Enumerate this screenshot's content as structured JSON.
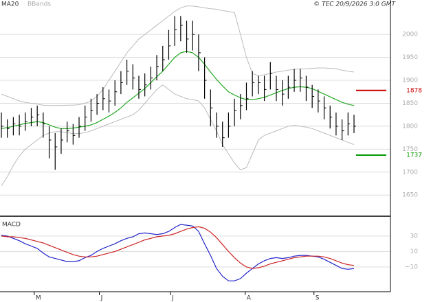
{
  "source": "© TEC 20/9/2026 3:0 GMT",
  "chart_data": [
    {
      "type": "ohlc",
      "xlim": [
        0,
        59
      ],
      "ylim": [
        1604,
        2075
      ],
      "yticks": [
        1650,
        1700,
        1750,
        1800,
        1850,
        1900,
        1950,
        2000
      ],
      "grid": true,
      "color": "#000000",
      "high": [
        1830,
        1815,
        1820,
        1825,
        1830,
        1840,
        1845,
        1830,
        1800,
        1785,
        1795,
        1810,
        1805,
        1820,
        1845,
        1860,
        1870,
        1885,
        1880,
        1900,
        1920,
        1945,
        1935,
        1910,
        1915,
        1930,
        1955,
        1975,
        2010,
        2040,
        2040,
        2030,
        2030,
        2000,
        1950,
        1880,
        1830,
        1810,
        1830,
        1860,
        1870,
        1895,
        1920,
        1910,
        1910,
        1940,
        1910,
        1900,
        1910,
        1925,
        1925,
        1910,
        1890,
        1880,
        1865,
        1845,
        1830,
        1815,
        1830,
        1825
      ],
      "low": [
        1775,
        1775,
        1780,
        1780,
        1790,
        1800,
        1800,
        1775,
        1730,
        1705,
        1740,
        1765,
        1760,
        1775,
        1790,
        1810,
        1825,
        1835,
        1830,
        1845,
        1870,
        1890,
        1880,
        1860,
        1865,
        1880,
        1900,
        1920,
        1945,
        1975,
        1985,
        1960,
        1965,
        1920,
        1860,
        1800,
        1775,
        1755,
        1775,
        1800,
        1815,
        1835,
        1865,
        1870,
        1855,
        1880,
        1855,
        1845,
        1860,
        1875,
        1875,
        1855,
        1840,
        1830,
        1815,
        1795,
        1780,
        1770,
        1780,
        1785
      ],
      "close": [
        1800,
        1795,
        1805,
        1800,
        1810,
        1820,
        1825,
        1805,
        1770,
        1755,
        1770,
        1790,
        1780,
        1800,
        1820,
        1835,
        1850,
        1860,
        1855,
        1875,
        1895,
        1920,
        1905,
        1880,
        1890,
        1905,
        1930,
        1945,
        1975,
        2010,
        2020,
        1990,
        2000,
        1960,
        1900,
        1840,
        1800,
        1775,
        1800,
        1835,
        1845,
        1860,
        1895,
        1895,
        1880,
        1915,
        1880,
        1870,
        1885,
        1900,
        1905,
        1885,
        1865,
        1855,
        1840,
        1820,
        1800,
        1790,
        1805,
        1800
      ],
      "series": [
        {
          "name": "MA20",
          "color": "#22a822",
          "values": [
            1795,
            1797,
            1800,
            1803,
            1806,
            1808,
            1810,
            1808,
            1803,
            1798,
            1795,
            1795,
            1796,
            1798,
            1800,
            1803,
            1808,
            1815,
            1822,
            1830,
            1840,
            1852,
            1862,
            1872,
            1882,
            1895,
            1908,
            1920,
            1935,
            1950,
            1960,
            1963,
            1960,
            1950,
            1935,
            1918,
            1902,
            1888,
            1875,
            1868,
            1862,
            1858,
            1858,
            1860,
            1863,
            1868,
            1873,
            1878,
            1882,
            1885,
            1886,
            1885,
            1882,
            1876,
            1870,
            1864,
            1858,
            1852,
            1848,
            1845
          ]
        },
        {
          "name": "BBands",
          "color": "#bbbbbb",
          "upper": [
            1870,
            1865,
            1860,
            1855,
            1852,
            1850,
            1848,
            1846,
            1845,
            1845,
            1845,
            1846,
            1846,
            1847,
            1850,
            1855,
            1865,
            1880,
            1900,
            1920,
            1940,
            1960,
            1975,
            1990,
            2000,
            2010,
            2020,
            2030,
            2040,
            2050,
            2058,
            2062,
            2062,
            2060,
            2058,
            2056,
            2055,
            2052,
            2050,
            2048,
            2000,
            1950,
            1915,
            1910,
            1912,
            1915,
            1918,
            1920,
            1922,
            1924,
            1925,
            1925,
            1926,
            1927,
            1927,
            1926,
            1925,
            1922,
            1920,
            1918
          ],
          "lower": [
            1670,
            1690,
            1715,
            1735,
            1750,
            1760,
            1770,
            1780,
            1785,
            1788,
            1788,
            1786,
            1784,
            1784,
            1786,
            1790,
            1795,
            1800,
            1805,
            1810,
            1815,
            1820,
            1825,
            1835,
            1850,
            1865,
            1880,
            1890,
            1880,
            1870,
            1865,
            1860,
            1858,
            1855,
            1840,
            1815,
            1790,
            1760,
            1740,
            1720,
            1705,
            1710,
            1740,
            1770,
            1780,
            1785,
            1790,
            1795,
            1800,
            1802,
            1800,
            1798,
            1795,
            1790,
            1785,
            1780,
            1775,
            1770,
            1765,
            1760
          ]
        }
      ],
      "levels": [
        {
          "value": 1878,
          "color": "#cc0000"
        },
        {
          "value": 1737,
          "color": "#009900"
        }
      ]
    },
    {
      "type": "line",
      "title": "MACD",
      "xlim": [
        0,
        59
      ],
      "ylim": [
        -42,
        53
      ],
      "yticks": [
        30,
        10,
        {
          "value": -10,
          "label": "−10"
        }
      ],
      "xticks": [
        {
          "value": 5.5,
          "label": "M"
        },
        {
          "value": 16.4,
          "label": "J"
        },
        {
          "value": 28.3,
          "label": "J"
        },
        {
          "value": 40.8,
          "label": "A"
        },
        {
          "value": 52.3,
          "label": "S"
        }
      ],
      "grid": true,
      "series": [
        {
          "color": "#2222cc",
          "values": [
            31,
            30,
            27,
            24,
            20,
            17,
            14,
            8,
            3,
            1,
            -1,
            -3,
            -3,
            -2,
            2,
            5,
            10,
            14,
            17,
            20,
            24,
            27,
            29,
            33,
            34,
            33,
            32,
            33,
            36,
            41,
            45,
            44,
            43,
            36,
            20,
            5,
            -12,
            -22,
            -28,
            -28,
            -25,
            -18,
            -12,
            -6,
            -2,
            1,
            2,
            1,
            2,
            4,
            5,
            5,
            4,
            3,
            0,
            -4,
            -8,
            -12,
            -13,
            -12
          ]
        },
        {
          "color": "#cc2222",
          "values": [
            30,
            29,
            29,
            28,
            27,
            25,
            23,
            21,
            18,
            15,
            12,
            9,
            6,
            4,
            3,
            3,
            4,
            6,
            8,
            10,
            13,
            16,
            19,
            22,
            25,
            27,
            29,
            30,
            31,
            33,
            36,
            39,
            41,
            42,
            40,
            35,
            28,
            19,
            10,
            2,
            -5,
            -10,
            -12,
            -11,
            -9,
            -6,
            -4,
            -2,
            0,
            2,
            3,
            4,
            4,
            4,
            3,
            1,
            -2,
            -5,
            -7,
            -8
          ]
        }
      ]
    }
  ]
}
